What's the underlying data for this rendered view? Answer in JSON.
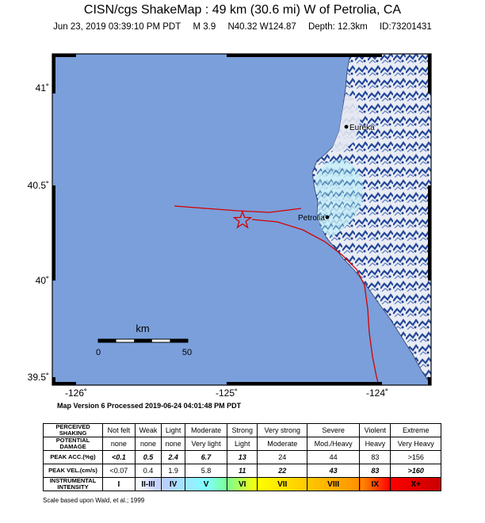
{
  "header": {
    "title": "CISN/cgs ShakeMap : 49 km (30.6 mi) W of Petrolia, CA",
    "date": "Jun 23, 2019 03:39:10 PM PDT",
    "magnitude": "M 3.9",
    "location": "N40.32 W124.87",
    "depth": "Depth: 12.3km",
    "id": "ID:73201431"
  },
  "map": {
    "lat_labels": [
      "41˚",
      "40.5˚",
      "40˚",
      "39.5˚"
    ],
    "lon_labels": [
      "-126˚",
      "-125˚",
      "-124˚"
    ],
    "places": [
      {
        "name": "Eureka"
      },
      {
        "name": "Petrolia"
      }
    ],
    "scale_bar": {
      "unit": "km",
      "start": "0",
      "end": "50"
    },
    "colors": {
      "ocean": "#7a9fdb",
      "land": "#dfe3ef",
      "fault": "#d40000",
      "epicenter": "#d40000"
    }
  },
  "footer": {
    "version_line": "Map Version 6 Processed 2019-06-24 04:01:48 PM PDT",
    "credit": "Scale based upon Wald, et al.; 1999"
  },
  "legend": {
    "row_headers": [
      "PERCEIVED SHAKING",
      "POTENTIAL DAMAGE",
      "PEAK ACC.(%g)",
      "PEAK VEL.(cm/s)",
      "INSTRUMENTAL INTENSITY"
    ],
    "shaking": [
      "Not felt",
      "Weak",
      "Light",
      "Moderate",
      "Strong",
      "Very strong",
      "Severe",
      "Violent",
      "Extreme"
    ],
    "damage": [
      "none",
      "none",
      "none",
      "Very light",
      "Light",
      "Moderate",
      "Mod./Heavy",
      "Heavy",
      "Very Heavy"
    ],
    "acc": [
      "<0.1",
      "0.5",
      "2.4",
      "6.7",
      "13",
      "24",
      "44",
      "83",
      ">156"
    ],
    "vel": [
      "<0.07",
      "0.4",
      "1.9",
      "5.8",
      "11",
      "22",
      "43",
      "83",
      ">160"
    ],
    "intensity": [
      "I",
      "II-III",
      "IV",
      "V",
      "VI",
      "VII",
      "VIII",
      "IX",
      "X+"
    ],
    "intensity_colors": [
      "#ffffff",
      "#bfccff",
      "#a0e6ff",
      "#80ffff",
      "#7aff93",
      "#ffff00",
      "#ffc800",
      "#ff9100",
      "#ff0000",
      "#c80000"
    ]
  }
}
